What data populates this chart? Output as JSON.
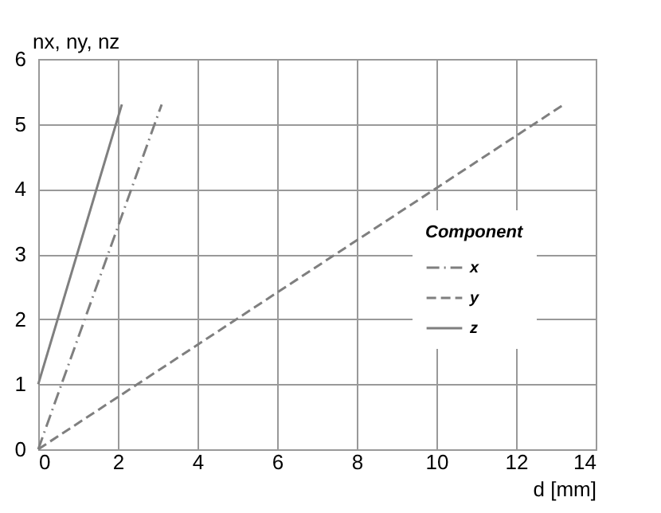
{
  "chart_data": {
    "type": "line",
    "xlabel": "d [mm]",
    "ylabel": "nx, ny, nz",
    "legend_title": "Component",
    "legend": "right",
    "grid": true,
    "marker": "none",
    "xlim": [
      0,
      14
    ],
    "xticks": [
      0,
      2,
      4,
      6,
      8,
      10,
      12,
      14
    ],
    "ylim": [
      0,
      6
    ],
    "yticks": [
      0,
      1,
      2,
      3,
      4,
      5,
      6
    ],
    "series": [
      {
        "name": "x",
        "color": "#7f7f7f",
        "line_style": "dashdot",
        "x": [
          0,
          3.1
        ],
        "values": [
          0,
          5.3
        ]
      },
      {
        "name": "y",
        "color": "#7f7f7f",
        "line_style": "dashed",
        "x": [
          0,
          13.2
        ],
        "values": [
          0,
          5.3
        ]
      },
      {
        "name": "z",
        "color": "#7f7f7f",
        "line_style": "solid",
        "x": [
          0,
          2.1
        ],
        "values": [
          1,
          5.3
        ]
      }
    ]
  }
}
